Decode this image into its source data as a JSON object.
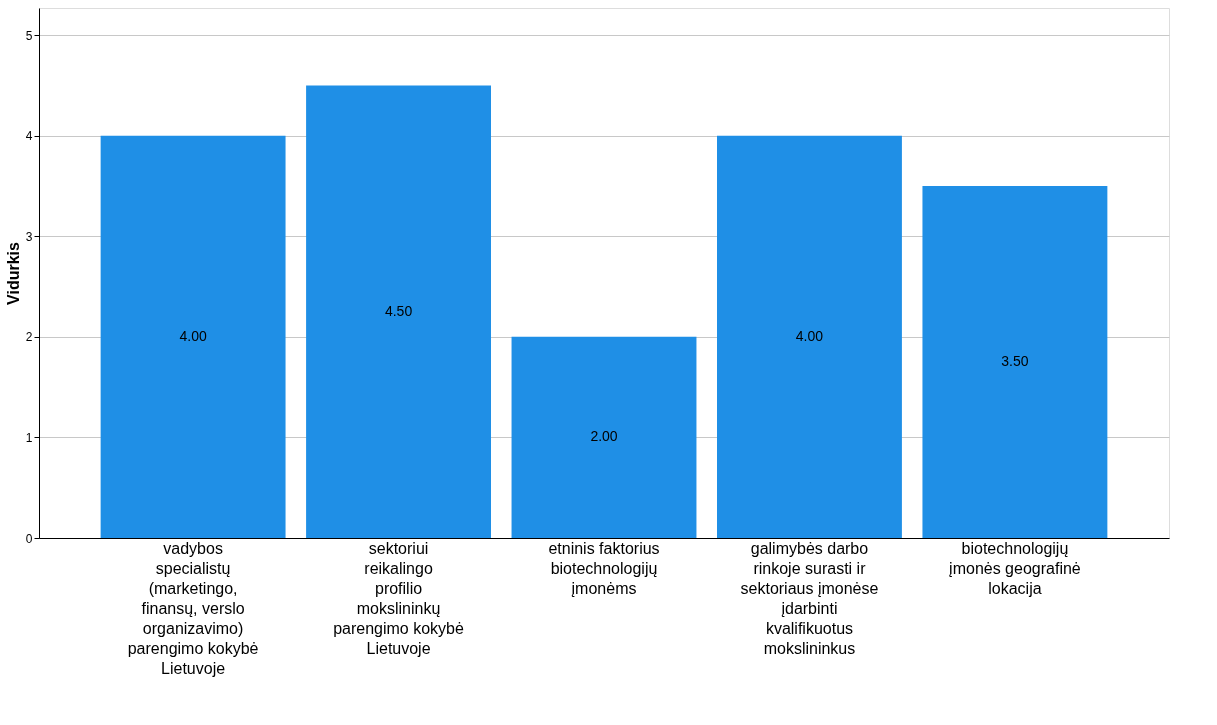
{
  "chart_data": {
    "type": "bar",
    "ylabel": "Vidurkis",
    "categories": [
      "vadybos specialistų (marketingo, finansų, verslo organizavimo) parengimo kokybė Lietuvoje",
      "sektoriui reikalingo profilio mokslininkų parengimo kokybė Lietuvoje",
      "etninis faktorius biotechnologijų įmonėms",
      "galimybės darbo rinkoje surasti ir sektoriaus įmonėse įdarbinti kvalifikuotus mokslininkus",
      "biotechnologijų įmonės geografinė lokacija"
    ],
    "values": [
      4.0,
      4.5,
      2.0,
      4.0,
      3.5
    ],
    "value_labels": [
      "4.00",
      "4.50",
      "2.00",
      "4.00",
      "3.50"
    ],
    "color": "#1f8fe6",
    "ylim": [
      0,
      5.27
    ],
    "yticks": [
      0,
      1,
      2,
      3,
      4,
      5
    ],
    "grid": "y"
  }
}
